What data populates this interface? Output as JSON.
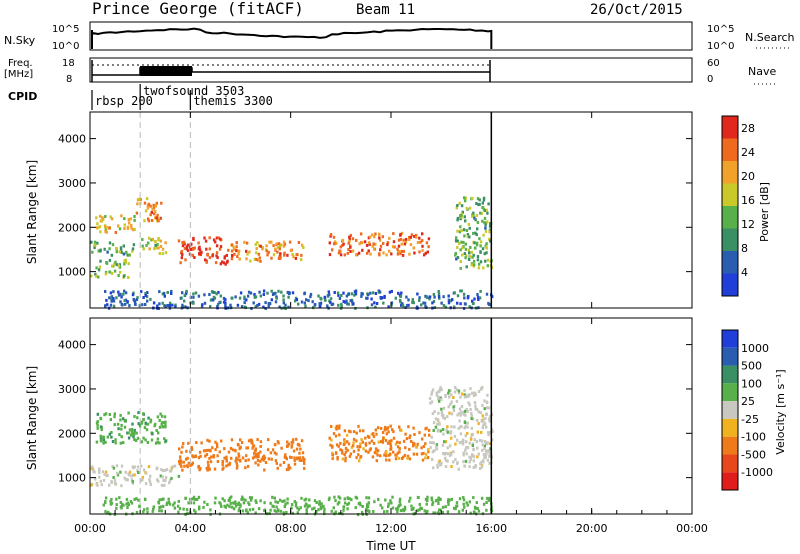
{
  "header": {
    "station": "Prince George (fitACF)",
    "beam": "Beam 11",
    "date": "26/Oct/2015"
  },
  "panels": {
    "nsky": {
      "left_label": "N.Sky",
      "right_label": "N.Search",
      "ticks": [
        "10^5",
        "10^0"
      ]
    },
    "freq": {
      "left_label_1": "Freq.",
      "left_label_2": "[MHz]",
      "ticks_left": [
        "18",
        "8"
      ],
      "right_label": "Nave",
      "ticks_right": [
        "60",
        "0"
      ]
    },
    "cpid": {
      "label": "CPID",
      "programs": [
        {
          "name": "rbsp 200",
          "start_hour": 0.0
        },
        {
          "name": "twofsound 3503",
          "start_hour": 2.0
        },
        {
          "name": "themis 3300",
          "start_hour": 4.0
        }
      ]
    }
  },
  "colors": {
    "power_scale": [
      "#1f3fd8",
      "#2a5db0",
      "#3a8f64",
      "#57b04a",
      "#c9c929",
      "#f0a22a",
      "#ef6a1e",
      "#e0281c"
    ],
    "velocity_scale": [
      "#1f3fd8",
      "#2a5db0",
      "#3a8f64",
      "#57b04a",
      "#c8c8c0",
      "#f0b21e",
      "#ef7a1a",
      "#e8461c",
      "#e01c1c"
    ],
    "guide_line": "#bbbbbb"
  },
  "chart_data": [
    {
      "type": "heatmap",
      "title": "Power",
      "xlabel": "Time UT",
      "ylabel": "Slant Range [km]",
      "xlim": [
        0,
        24
      ],
      "ylim": [
        180,
        4600
      ],
      "x_ticks": [
        "00:00",
        "04:00",
        "08:00",
        "12:00",
        "16:00",
        "20:00",
        "00:00"
      ],
      "y_ticks": [
        "1000",
        "2000",
        "3000",
        "4000"
      ],
      "colorbar": {
        "label": "Power [dB]",
        "ticks": [
          "4",
          "8",
          "12",
          "16",
          "20",
          "24",
          "28"
        ],
        "range": [
          0,
          30
        ]
      },
      "data_end_hour": 16.0,
      "regions": [
        {
          "t0": 0.0,
          "t1": 1.5,
          "r0": 900,
          "r1": 1300,
          "value": 14
        },
        {
          "t0": 0.0,
          "t1": 1.8,
          "r0": 1400,
          "r1": 1700,
          "value": 12
        },
        {
          "t0": 0.2,
          "t1": 1.8,
          "r0": 1900,
          "r1": 2300,
          "value": 18
        },
        {
          "t0": 1.8,
          "t1": 2.8,
          "r0": 2100,
          "r1": 2700,
          "value": 22
        },
        {
          "t0": 2.0,
          "t1": 3.0,
          "r0": 1400,
          "r1": 1800,
          "value": 16
        },
        {
          "t0": 3.5,
          "t1": 5.5,
          "r0": 1200,
          "r1": 1800,
          "value": 28
        },
        {
          "t0": 5.5,
          "t1": 8.5,
          "r0": 1250,
          "r1": 1700,
          "value": 22
        },
        {
          "t0": 9.5,
          "t1": 13.5,
          "r0": 1400,
          "r1": 1900,
          "value": 24
        },
        {
          "t0": 14.5,
          "t1": 16.0,
          "r0": 1100,
          "r1": 2700,
          "value": 12
        },
        {
          "t0": 0.5,
          "t1": 16.0,
          "r0": 200,
          "r1": 600,
          "value": 6
        }
      ]
    },
    {
      "type": "heatmap",
      "title": "Velocity",
      "xlabel": "Time UT",
      "ylabel": "Slant Range [km]",
      "xlim": [
        0,
        24
      ],
      "ylim": [
        180,
        4600
      ],
      "x_ticks": [
        "00:00",
        "04:00",
        "08:00",
        "12:00",
        "16:00",
        "20:00",
        "00:00"
      ],
      "y_ticks": [
        "1000",
        "2000",
        "3000",
        "4000"
      ],
      "colorbar": {
        "label": "Velocity [m s⁻¹]",
        "ticks": [
          "1000",
          "500",
          "100",
          "25",
          "-25",
          "-100",
          "-500",
          "-1000"
        ]
      },
      "data_end_hour": 16.0,
      "regions": [
        {
          "t0": 0.0,
          "t1": 3.5,
          "r0": 850,
          "r1": 1300,
          "value": 0
        },
        {
          "t0": 0.2,
          "t1": 3.0,
          "r0": 1800,
          "r1": 2500,
          "value": 80
        },
        {
          "t0": 3.5,
          "t1": 8.5,
          "r0": 1200,
          "r1": 1900,
          "value": -150
        },
        {
          "t0": 9.5,
          "t1": 13.5,
          "r0": 1400,
          "r1": 2200,
          "value": -120
        },
        {
          "t0": 13.5,
          "t1": 16.0,
          "r0": 1200,
          "r1": 3100,
          "value": 0
        },
        {
          "t0": 0.5,
          "t1": 16.0,
          "r0": 200,
          "r1": 600,
          "value": 60
        }
      ]
    }
  ]
}
